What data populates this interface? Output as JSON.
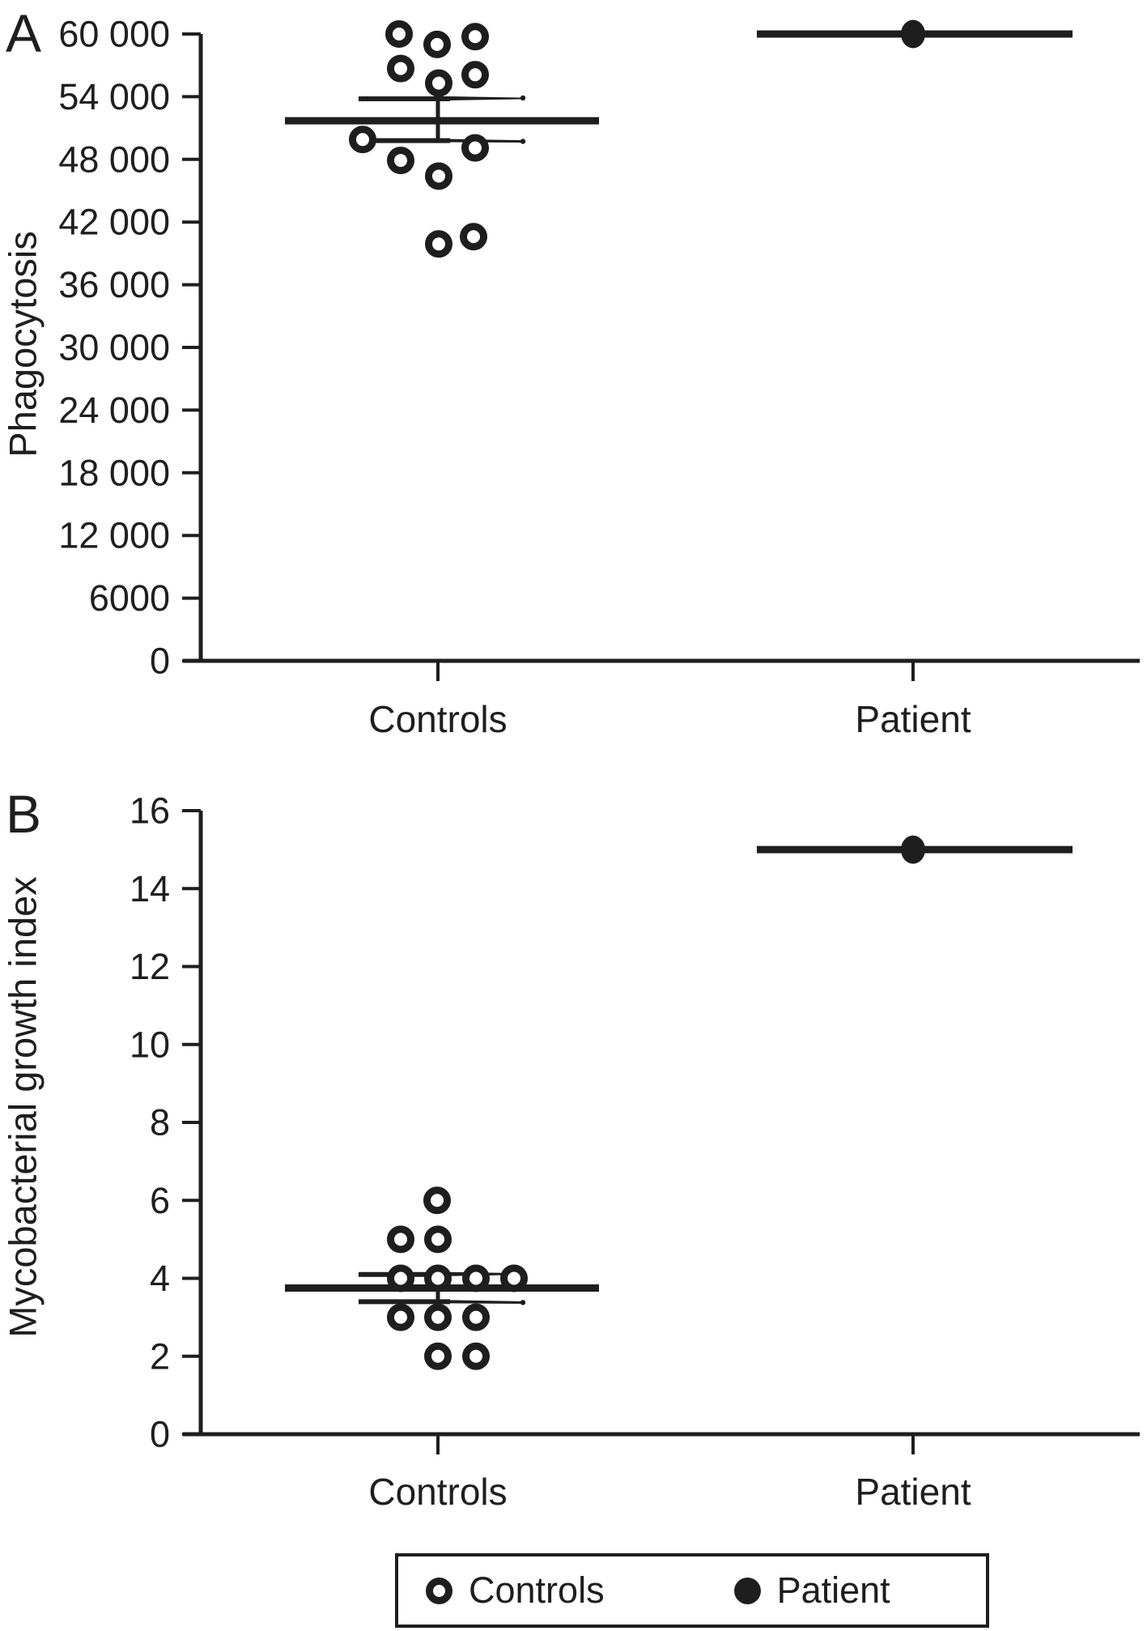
{
  "figure_ink_color": "#1e1e1e",
  "figure_background": "#ffffff",
  "chart_data": [
    {
      "type": "scatter",
      "panel_label": "A",
      "ylabel": "Phagocytosis",
      "ylim": [
        0,
        60000
      ],
      "grid": false,
      "y_tick_values": [
        0,
        6000,
        12000,
        18000,
        24000,
        30000,
        36000,
        42000,
        48000,
        54000,
        60000
      ],
      "y_tick_labels": [
        "0",
        "6000",
        "12 000",
        "18 000",
        "24 000",
        "30 000",
        "36 000",
        "42 000",
        "48 000",
        "54 000",
        "60 000"
      ],
      "categories": [
        "Controls",
        "Patient"
      ],
      "series": [
        {
          "name": "Controls",
          "marker": "open-circle",
          "points": [
            {
              "value": 60000,
              "dx": -48
            },
            {
              "value": 59750,
              "dx": 46
            },
            {
              "value": 59000,
              "dx": -1
            },
            {
              "value": 56700,
              "dx": -46
            },
            {
              "value": 56100,
              "dx": 46
            },
            {
              "value": 55300,
              "dx": 1
            },
            {
              "value": 49900,
              "dx": -93
            },
            {
              "value": 49100,
              "dx": 46
            },
            {
              "value": 47900,
              "dx": -46
            },
            {
              "value": 46400,
              "dx": 1
            },
            {
              "value": 40600,
              "dx": 44
            },
            {
              "value": 39900,
              "dx": 1
            }
          ],
          "mean": 51700,
          "sem_high": 53800,
          "sem_low": 49800
        },
        {
          "name": "Patient",
          "marker": "filled-circle",
          "points": [
            {
              "value": 60000,
              "dx": 0
            }
          ]
        }
      ]
    },
    {
      "type": "scatter",
      "panel_label": "B",
      "ylabel": "Mycobacterial growth index",
      "ylim": [
        0,
        16
      ],
      "grid": false,
      "y_tick_values": [
        0,
        2,
        4,
        6,
        8,
        10,
        12,
        14,
        16
      ],
      "y_tick_labels": [
        "0",
        "2",
        "4",
        "6",
        "8",
        "10",
        "12",
        "14",
        "16"
      ],
      "categories": [
        "Controls",
        "Patient"
      ],
      "series": [
        {
          "name": "Controls",
          "marker": "open-circle",
          "points": [
            {
              "value": 6,
              "dx": -1
            },
            {
              "value": 5,
              "dx": -46
            },
            {
              "value": 5,
              "dx": 0
            },
            {
              "value": 4,
              "dx": -46
            },
            {
              "value": 4,
              "dx": 0
            },
            {
              "value": 4,
              "dx": 47
            },
            {
              "value": 4,
              "dx": 94
            },
            {
              "value": 3,
              "dx": -46
            },
            {
              "value": 3,
              "dx": 0
            },
            {
              "value": 3,
              "dx": 47
            },
            {
              "value": 2,
              "dx": 0
            },
            {
              "value": 2,
              "dx": 47
            }
          ],
          "mean": 3.75,
          "sem_high": 4.1,
          "sem_low": 3.4
        },
        {
          "name": "Patient",
          "marker": "filled-circle",
          "points": [
            {
              "value": 15,
              "dx": 0
            }
          ]
        }
      ]
    }
  ],
  "legend": {
    "items": [
      {
        "label": "Controls",
        "marker": "open-circle"
      },
      {
        "label": "Patient",
        "marker": "filled-circle"
      }
    ]
  }
}
